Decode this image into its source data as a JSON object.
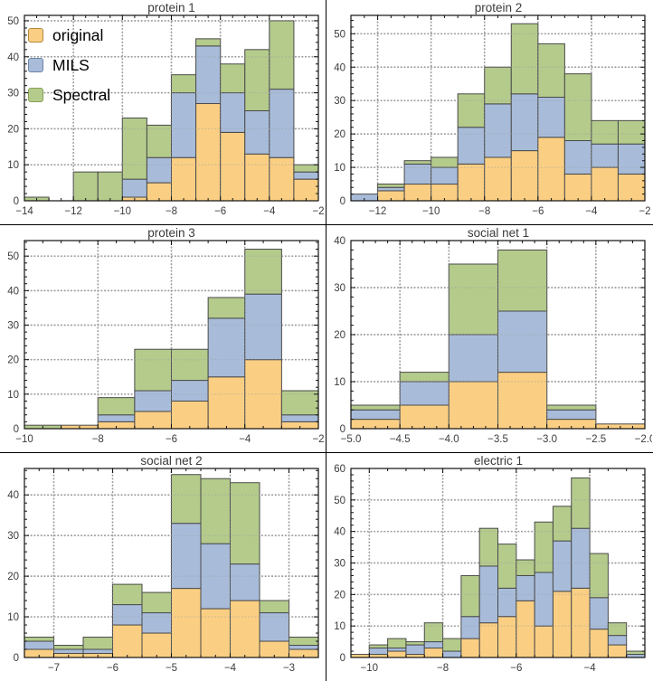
{
  "colors": {
    "original_fill": "#fbcf83",
    "mils_fill": "#a8bcda",
    "spectral_fill": "#b4cb8c",
    "original_border": "#b08a3e",
    "mils_border": "#6b83a8",
    "spectral_border": "#85a055",
    "bar_edge": "#4a4a4a",
    "gridline": "#9e9e9e",
    "frame": "#111111",
    "tick_text": "#3c3c3c"
  },
  "legend": {
    "items": [
      {
        "label": "original",
        "color": "#fbcf83",
        "border": "#b08a3e"
      },
      {
        "label": "MILS",
        "color": "#a8bcda",
        "border": "#6b83a8"
      },
      {
        "label": "Spectral",
        "color": "#b4cb8c",
        "border": "#85a055"
      }
    ]
  },
  "chart_data": [
    {
      "type": "bar",
      "subtype": "stacked-histogram",
      "title": "protein 1",
      "xlim": [
        -14,
        -2
      ],
      "ylim": [
        0,
        51.5
      ],
      "bin_start": -14,
      "bin_width": 1,
      "xticks": [
        -14,
        -12,
        -10,
        -8,
        -6,
        -4,
        -2
      ],
      "xtick_labels": [
        "−14",
        "−12",
        "−10",
        "−8",
        "−6",
        "−4",
        "−2"
      ],
      "yticks": [
        0,
        10,
        20,
        30,
        40,
        50
      ],
      "grid": true,
      "legend_position": "top-left",
      "series": [
        {
          "name": "original",
          "values": [
            0,
            0,
            0,
            0,
            1,
            5,
            12,
            27,
            19,
            13,
            12,
            6
          ]
        },
        {
          "name": "MILS",
          "values": [
            0,
            0,
            0,
            0,
            5,
            7,
            18,
            16,
            11,
            12,
            19,
            2
          ]
        },
        {
          "name": "Spectral",
          "values": [
            1,
            0,
            8,
            8,
            17,
            9,
            5,
            2,
            8,
            17,
            19,
            2
          ]
        }
      ]
    },
    {
      "type": "bar",
      "subtype": "stacked-histogram",
      "title": "protein 2",
      "xlim": [
        -13,
        -2
      ],
      "ylim": [
        0,
        55.5
      ],
      "bin_start": -13,
      "bin_width": 1,
      "xticks": [
        -12,
        -10,
        -8,
        -6,
        -4,
        -2
      ],
      "xtick_labels": [
        "−12",
        "−10",
        "−8",
        "−6",
        "−4",
        "−2"
      ],
      "yticks": [
        0,
        10,
        20,
        30,
        40,
        50
      ],
      "grid": true,
      "series": [
        {
          "name": "original",
          "values": [
            0,
            3,
            5,
            5,
            11,
            13,
            15,
            19,
            8,
            10,
            8
          ]
        },
        {
          "name": "MILS",
          "values": [
            2,
            1,
            6,
            5,
            11,
            16,
            17,
            12,
            10,
            7,
            9
          ]
        },
        {
          "name": "Spectral",
          "values": [
            0,
            1,
            1,
            3,
            10,
            11,
            21,
            16,
            20,
            7,
            7
          ]
        }
      ]
    },
    {
      "type": "bar",
      "subtype": "stacked-histogram",
      "title": "protein 3",
      "xlim": [
        -10,
        -2
      ],
      "ylim": [
        0,
        54.5
      ],
      "bin_start": -10,
      "bin_width": 1,
      "xticks": [
        -10,
        -8,
        -6,
        -4,
        -2
      ],
      "xtick_labels": [
        "−10",
        "−8",
        "−6",
        "−4",
        "−2"
      ],
      "yticks": [
        0,
        10,
        20,
        30,
        40,
        50
      ],
      "grid": true,
      "series": [
        {
          "name": "original",
          "values": [
            0,
            1,
            2,
            5,
            8,
            15,
            20,
            2
          ]
        },
        {
          "name": "MILS",
          "values": [
            0,
            0,
            2,
            6,
            6,
            17,
            19,
            2
          ]
        },
        {
          "name": "Spectral",
          "values": [
            1,
            0,
            5,
            12,
            9,
            6,
            13,
            7
          ]
        }
      ]
    },
    {
      "type": "bar",
      "subtype": "stacked-histogram",
      "title": "social net 1",
      "xlim": [
        -5,
        -2
      ],
      "ylim": [
        0,
        40
      ],
      "bin_start": -5,
      "bin_width": 0.5,
      "xticks": [
        -5,
        -4.5,
        -4,
        -3.5,
        -3,
        -2.5,
        -2
      ],
      "xtick_labels": [
        "−5.0",
        "−4.5",
        "−4.0",
        "−3.5",
        "−3.0",
        "−2.5",
        "−2.0"
      ],
      "yticks": [
        0,
        10,
        20,
        30,
        40
      ],
      "grid": true,
      "series": [
        {
          "name": "original",
          "values": [
            2,
            5,
            10,
            12,
            2,
            1
          ]
        },
        {
          "name": "MILS",
          "values": [
            2,
            5,
            10,
            13,
            2,
            0
          ]
        },
        {
          "name": "Spectral",
          "values": [
            1,
            2,
            15,
            13,
            1,
            0
          ]
        }
      ]
    },
    {
      "type": "bar",
      "subtype": "stacked-histogram",
      "title": "social net 2",
      "xlim": [
        -7.5,
        -2.5
      ],
      "ylim": [
        0,
        46.5
      ],
      "bin_start": -7.5,
      "bin_width": 0.5,
      "xticks": [
        -7,
        -6,
        -5,
        -4,
        -3
      ],
      "xtick_labels": [
        "−7",
        "−6",
        "−5",
        "−4",
        "−3"
      ],
      "yticks": [
        0,
        10,
        20,
        30,
        40
      ],
      "grid": true,
      "series": [
        {
          "name": "original",
          "values": [
            2,
            1,
            1,
            8,
            6,
            17,
            12,
            14,
            4,
            2
          ]
        },
        {
          "name": "MILS",
          "values": [
            2,
            1,
            1,
            5,
            5,
            16,
            16,
            9,
            7,
            1
          ]
        },
        {
          "name": "Spectral",
          "values": [
            1,
            1,
            3,
            5,
            5,
            12,
            16,
            20,
            3,
            2
          ]
        }
      ]
    },
    {
      "type": "bar",
      "subtype": "stacked-histogram",
      "title": "electric 1",
      "xlim": [
        -10.5,
        -2.5
      ],
      "ylim": [
        0,
        60
      ],
      "bin_start": -10.5,
      "bin_width": 0.5,
      "xticks": [
        -10,
        -8,
        -6,
        -4
      ],
      "xtick_labels": [
        "−10",
        "−8",
        "−6",
        "−4"
      ],
      "yticks": [
        0,
        10,
        20,
        30,
        40,
        50,
        60
      ],
      "grid": true,
      "series": [
        {
          "name": "original",
          "values": [
            1,
            1,
            2,
            1,
            3,
            0,
            6,
            11,
            13,
            18,
            10,
            21,
            22,
            9,
            4,
            0
          ]
        },
        {
          "name": "MILS",
          "values": [
            0,
            2,
            1,
            3,
            2,
            2,
            7,
            18,
            9,
            8,
            17,
            16,
            19,
            10,
            3,
            1
          ]
        },
        {
          "name": "Spectral",
          "values": [
            0,
            1,
            3,
            1,
            6,
            4,
            13,
            12,
            14,
            5,
            16,
            11,
            16,
            14,
            4,
            1
          ]
        }
      ]
    }
  ]
}
